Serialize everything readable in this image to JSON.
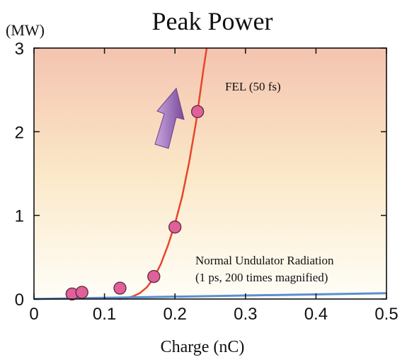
{
  "chart_data": {
    "type": "scatter",
    "title": "Peak Power",
    "xlabel": "Charge (nC)",
    "ylabel": "(MW)",
    "xlim": [
      0,
      0.5
    ],
    "ylim": [
      0,
      3
    ],
    "xticks": [
      "0",
      "0.1",
      "0.2",
      "0.3",
      "0.4",
      "0.5"
    ],
    "yticks": [
      "0",
      "1",
      "2",
      "3"
    ],
    "grid": false,
    "annotations": {
      "fel": "FEL (50 fs)",
      "undulator_line1": "Normal Undulator Radiation",
      "undulator_line2": "(1 ps, 200 times magnified)"
    },
    "series": [
      {
        "name": "FEL (50 fs)",
        "kind": "points",
        "x": [
          0.054,
          0.068,
          0.122,
          0.17,
          0.2,
          0.232
        ],
        "y": [
          0.06,
          0.08,
          0.13,
          0.27,
          0.86,
          2.24
        ]
      },
      {
        "name": "FEL (50 fs)",
        "kind": "curve",
        "x": [
          0.12,
          0.13,
          0.14,
          0.15,
          0.16,
          0.17,
          0.18,
          0.19,
          0.2,
          0.21,
          0.22,
          0.23,
          0.24,
          0.245
        ],
        "y": [
          0.0,
          0.01,
          0.03,
          0.07,
          0.14,
          0.25,
          0.42,
          0.64,
          0.9,
          1.22,
          1.63,
          2.12,
          2.72,
          3.0
        ]
      },
      {
        "name": "Normal Undulator Radiation",
        "kind": "curve",
        "x": [
          0.0,
          0.5
        ],
        "y": [
          0.0,
          0.07
        ]
      }
    ]
  },
  "colors": {
    "fel_curve": "#e8452a",
    "points": "#e0609a",
    "undulator_line": "#5b8fd0",
    "arrow": "#9b6fb8",
    "bg_top": "#f4c4b0",
    "bg_mid": "#fbe8c8",
    "bg_bottom": "#fffef8"
  }
}
